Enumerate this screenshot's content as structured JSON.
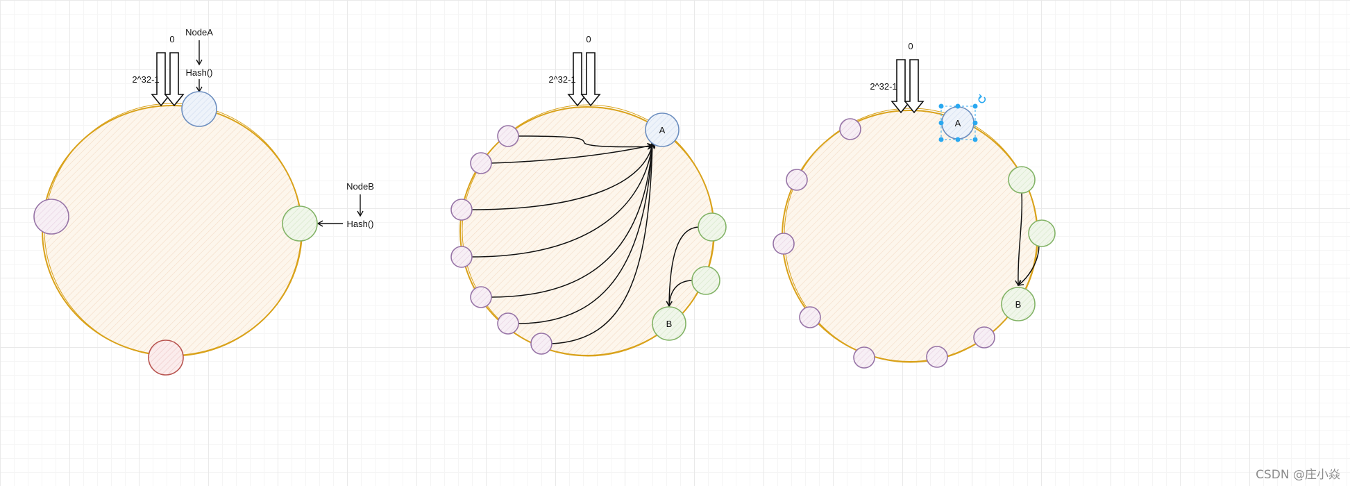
{
  "diagram1": {
    "zero_label": "0",
    "wrap_label": "2^32-1",
    "node_a_label": "NodeA",
    "hash_a_label": "Hash()",
    "node_b_label": "NodeB",
    "hash_b_label": "Hash()"
  },
  "diagram2": {
    "zero_label": "0",
    "wrap_label": "2^32-1",
    "server_a_label": "A",
    "server_b_label": "B"
  },
  "diagram3": {
    "zero_label": "0",
    "wrap_label": "2^32-1",
    "server_a_label": "A",
    "server_b_label": "B"
  },
  "colors": {
    "ring_stroke": "#d9a21b",
    "ring_fill": "#fdf6ec",
    "node_blue": "#6c8ebf",
    "node_green": "#82b366",
    "node_red": "#b85450",
    "node_purple": "#9673a6",
    "selection": "#29a8f0"
  },
  "watermark": "CSDN @庄小焱"
}
